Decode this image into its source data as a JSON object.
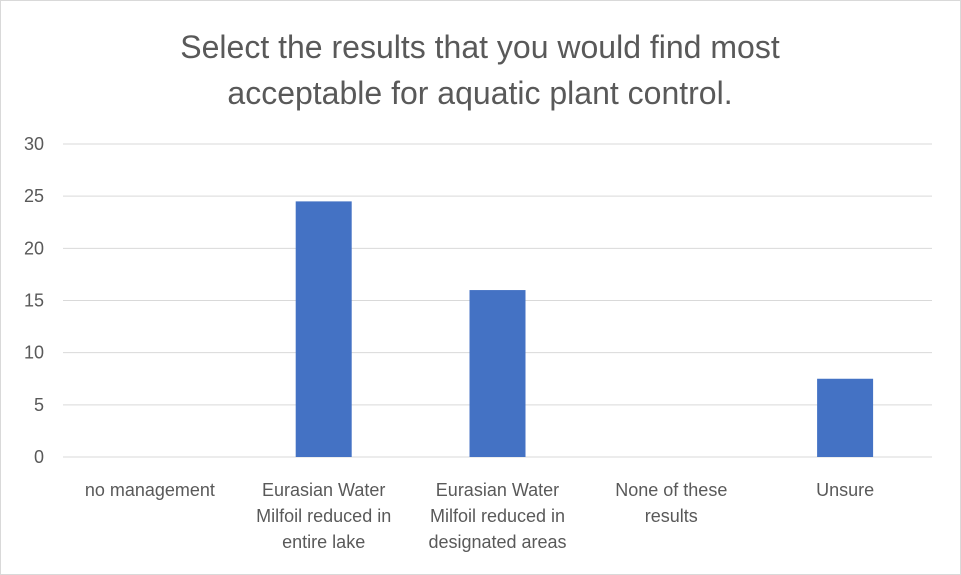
{
  "chart_data": {
    "type": "bar",
    "title_lines": [
      "Select the results that you would find most",
      "acceptable for aquatic plant control."
    ],
    "categories": [
      [
        "no management"
      ],
      [
        "Eurasian Water",
        "Milfoil reduced in",
        "entire lake"
      ],
      [
        "Eurasian Water",
        "Milfoil reduced in",
        "designated areas"
      ],
      [
        "None of these",
        "results"
      ],
      [
        "Unsure"
      ]
    ],
    "values": [
      0,
      24.5,
      16,
      0,
      7.5
    ],
    "ylim": [
      0,
      30
    ],
    "yticks": [
      "0",
      "5",
      "10",
      "15",
      "20",
      "25",
      "30"
    ],
    "grid": true,
    "bar_color": "#4472c4",
    "legend": "none"
  }
}
